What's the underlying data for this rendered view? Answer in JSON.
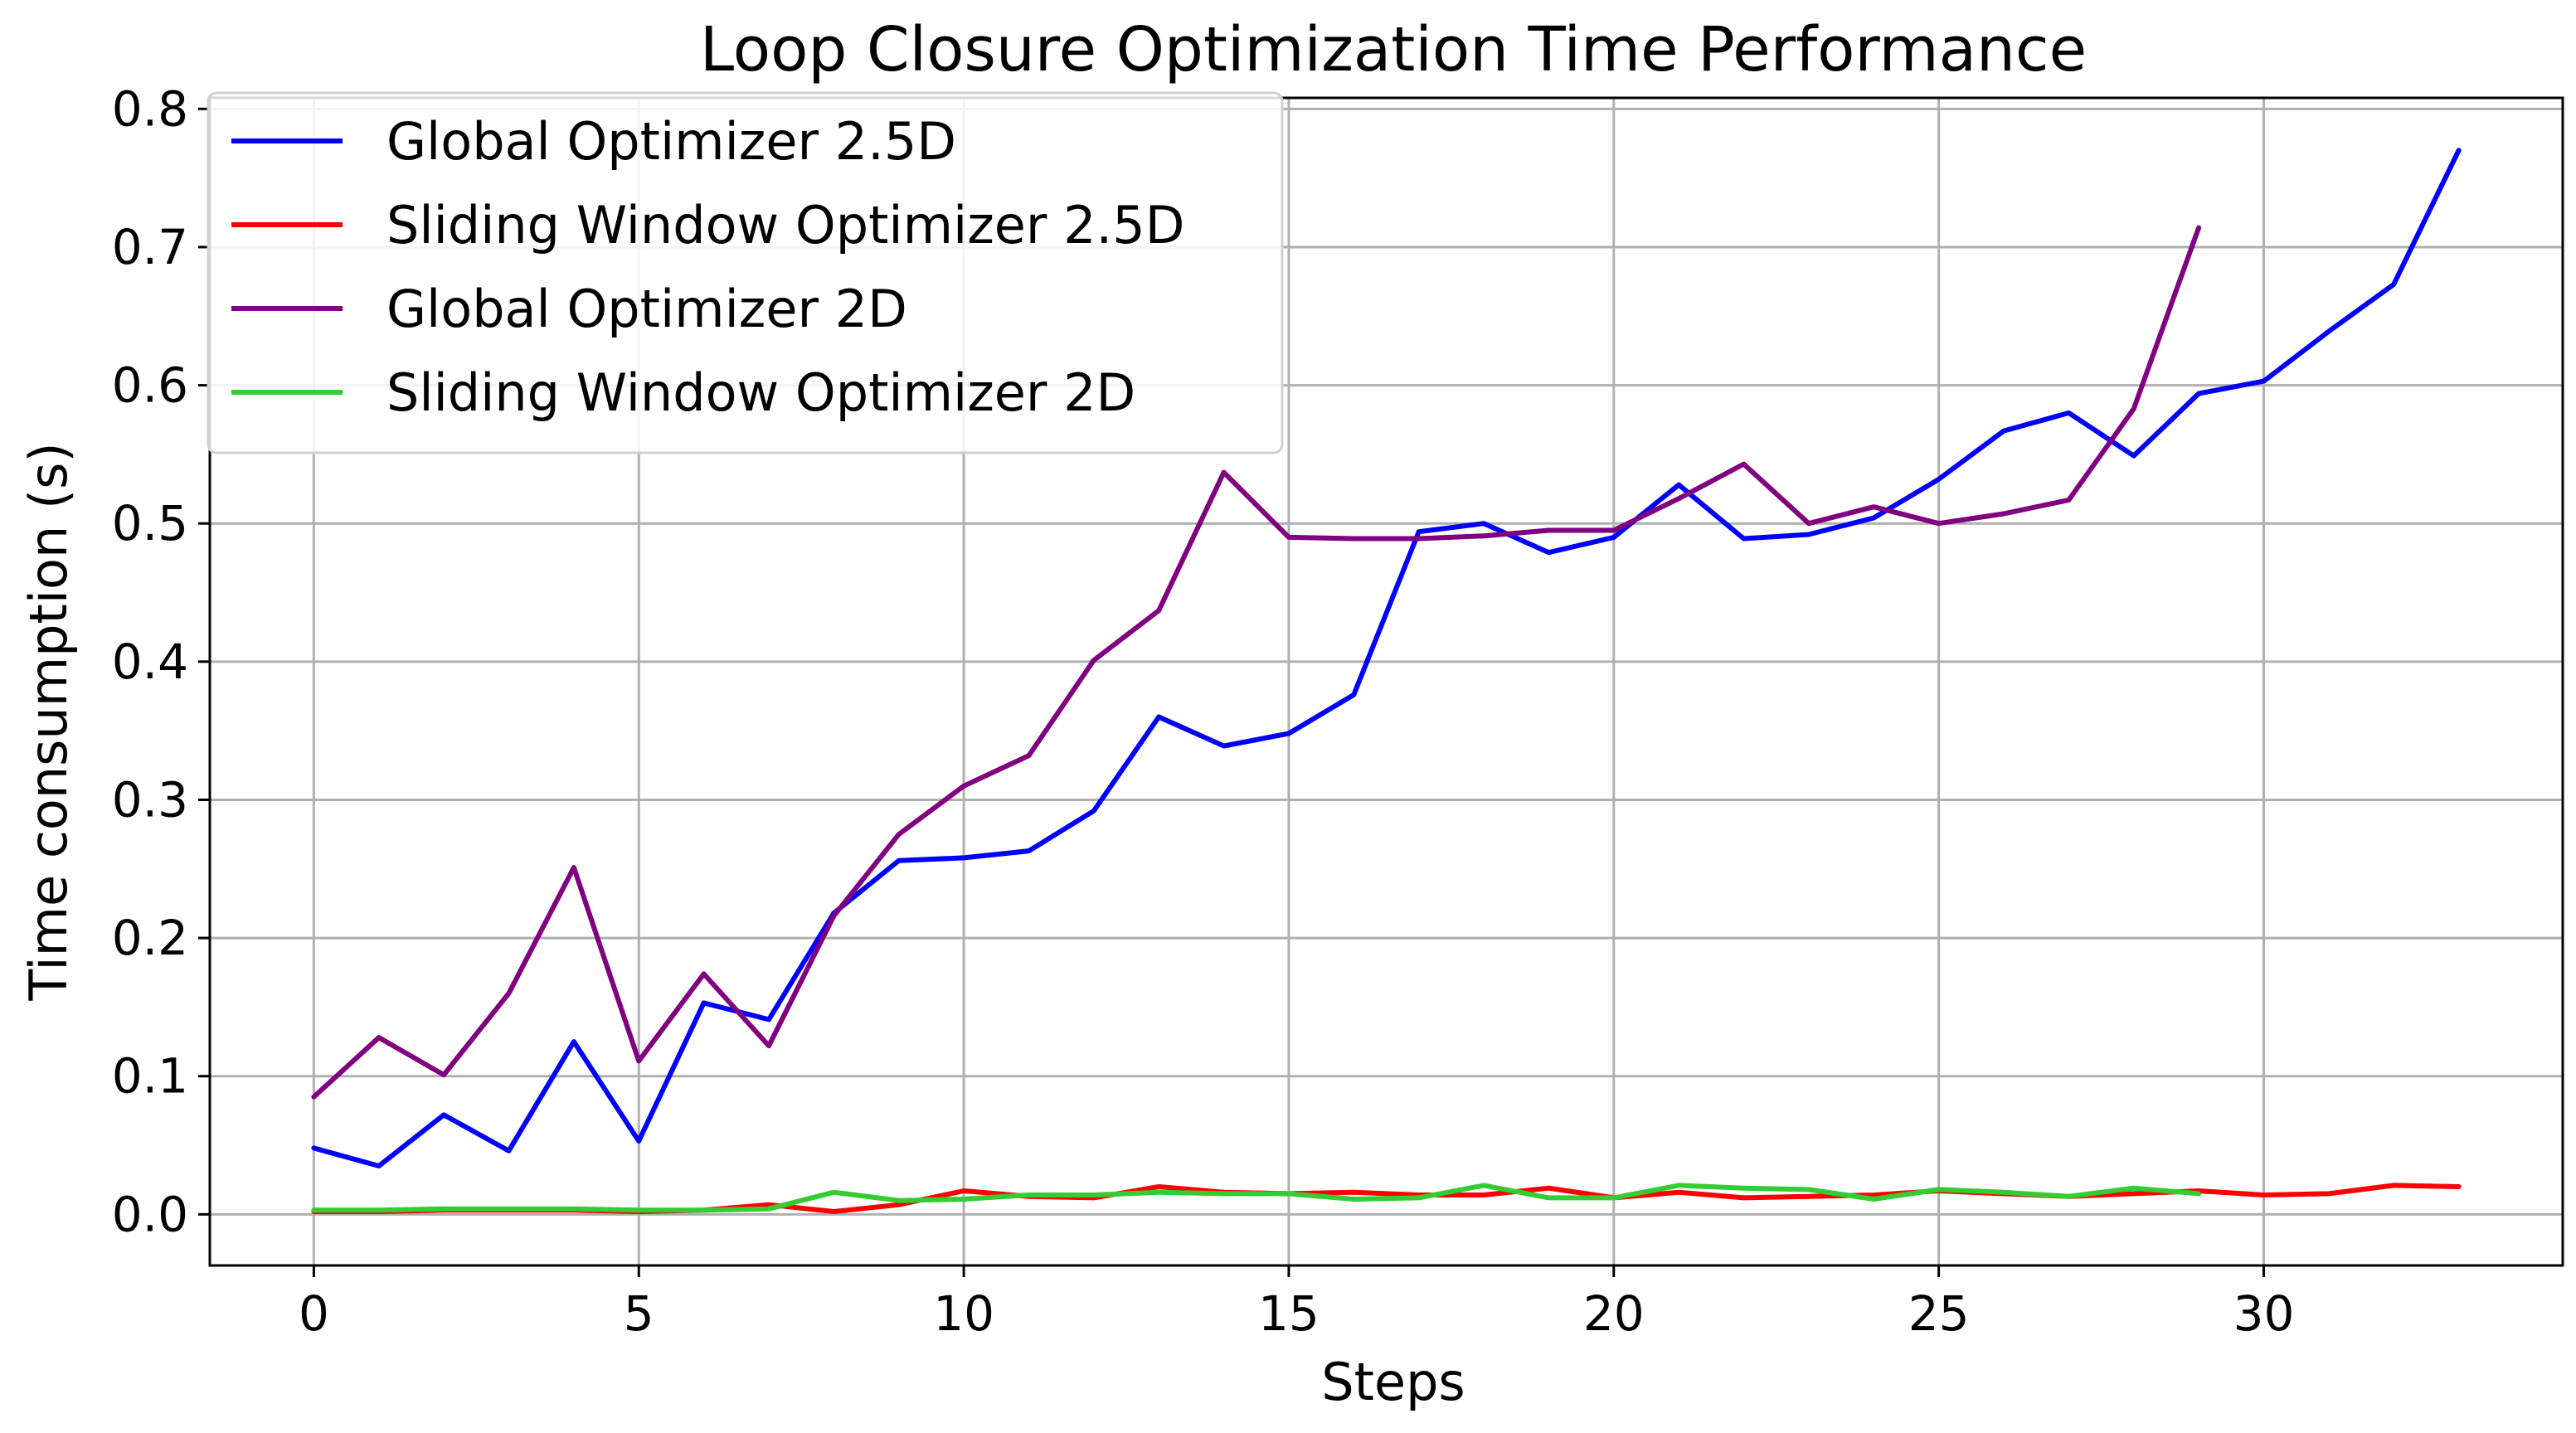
{
  "chart_data": {
    "type": "line",
    "title": "Loop Closure Optimization Time Performance",
    "xlabel": "Steps",
    "ylabel": "Time consumption (s)",
    "xlim": [
      -1.6,
      34.6
    ],
    "ylim": [
      -0.037,
      0.808
    ],
    "xticks": [
      0,
      5,
      10,
      15,
      20,
      25,
      30
    ],
    "xtick_labels": [
      "0",
      "5",
      "10",
      "15",
      "20",
      "25",
      "30"
    ],
    "yticks": [
      0.0,
      0.1,
      0.2,
      0.3,
      0.4,
      0.5,
      0.6,
      0.7,
      0.8
    ],
    "ytick_labels": [
      "0.0",
      "0.1",
      "0.2",
      "0.3",
      "0.4",
      "0.5",
      "0.6",
      "0.7",
      "0.8"
    ],
    "grid": true,
    "legend_position": "top-left",
    "series": [
      {
        "name": "Global Optimizer 2.5D",
        "color": "#0000ff",
        "x": [
          0,
          1,
          2,
          3,
          4,
          5,
          6,
          7,
          8,
          9,
          10,
          11,
          12,
          13,
          14,
          15,
          16,
          17,
          18,
          19,
          20,
          21,
          22,
          23,
          24,
          25,
          26,
          27,
          28,
          29,
          30,
          31,
          32,
          33
        ],
        "values": [
          0.048,
          0.035,
          0.072,
          0.046,
          0.125,
          0.053,
          0.153,
          0.141,
          0.218,
          0.256,
          0.258,
          0.263,
          0.292,
          0.36,
          0.339,
          0.348,
          0.376,
          0.494,
          0.5,
          0.479,
          0.49,
          0.528,
          0.489,
          0.492,
          0.504,
          0.532,
          0.567,
          0.58,
          0.549,
          0.594,
          0.603,
          0.639,
          0.673,
          0.77
        ]
      },
      {
        "name": "Sliding Window Optimizer 2.5D",
        "color": "#ff0000",
        "x": [
          0,
          1,
          2,
          3,
          4,
          5,
          6,
          7,
          8,
          9,
          10,
          11,
          12,
          13,
          14,
          15,
          16,
          17,
          18,
          19,
          20,
          21,
          22,
          23,
          24,
          25,
          26,
          27,
          28,
          29,
          30,
          31,
          32,
          33
        ],
        "values": [
          0.002,
          0.002,
          0.003,
          0.003,
          0.003,
          0.002,
          0.003,
          0.007,
          0.002,
          0.007,
          0.017,
          0.013,
          0.012,
          0.02,
          0.016,
          0.015,
          0.016,
          0.014,
          0.014,
          0.019,
          0.012,
          0.016,
          0.012,
          0.013,
          0.014,
          0.017,
          0.015,
          0.013,
          0.015,
          0.017,
          0.014,
          0.015,
          0.021,
          0.02
        ]
      },
      {
        "name": "Global Optimizer 2D",
        "color": "#800080",
        "x": [
          0,
          1,
          2,
          3,
          4,
          5,
          6,
          7,
          8,
          9,
          10,
          11,
          12,
          13,
          14,
          15,
          16,
          17,
          18,
          19,
          20,
          21,
          22,
          23,
          24,
          25,
          26,
          27,
          28,
          29
        ],
        "values": [
          0.085,
          0.128,
          0.101,
          0.16,
          0.251,
          0.111,
          0.174,
          0.122,
          0.216,
          0.275,
          0.31,
          0.332,
          0.401,
          0.437,
          0.537,
          0.49,
          0.489,
          0.489,
          0.491,
          0.495,
          0.495,
          0.518,
          0.543,
          0.5,
          0.512,
          0.5,
          0.507,
          0.517,
          0.583,
          0.714
        ]
      },
      {
        "name": "Sliding Window Optimizer 2D",
        "color": "#33cc33",
        "x": [
          0,
          1,
          2,
          3,
          4,
          5,
          6,
          7,
          8,
          9,
          10,
          11,
          12,
          13,
          14,
          15,
          16,
          17,
          18,
          19,
          20,
          21,
          22,
          23,
          24,
          25,
          26,
          27,
          28,
          29
        ],
        "values": [
          0.003,
          0.003,
          0.004,
          0.004,
          0.004,
          0.003,
          0.003,
          0.004,
          0.016,
          0.01,
          0.011,
          0.014,
          0.014,
          0.016,
          0.015,
          0.015,
          0.011,
          0.012,
          0.021,
          0.012,
          0.012,
          0.021,
          0.019,
          0.018,
          0.011,
          0.018,
          0.016,
          0.013,
          0.019,
          0.015
        ]
      }
    ]
  }
}
